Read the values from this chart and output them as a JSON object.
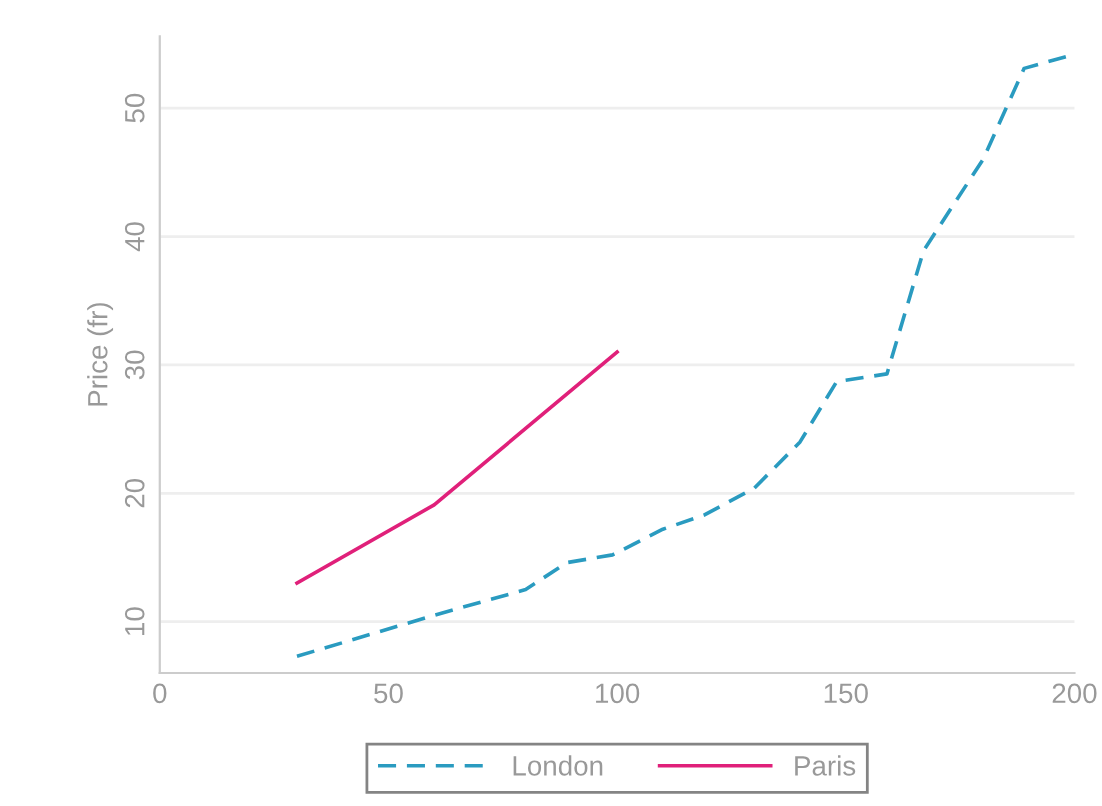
{
  "chart_data": {
    "type": "line",
    "ylabel": "Price (fr)",
    "xlim": [
      0,
      200
    ],
    "xticks": [
      0,
      50,
      100,
      150,
      200
    ],
    "ylim": [
      6,
      55.6
    ],
    "yticks": [
      10,
      20,
      30,
      40,
      50
    ],
    "grid": "y",
    "legend": "bottom",
    "series": [
      {
        "name": "London",
        "color": "#2a9bc0",
        "line_style": "dashed",
        "x": [
          30,
          60,
          80,
          89,
          99,
          110,
          119,
          130,
          140,
          148,
          159,
          167,
          180,
          189,
          199
        ],
        "values": [
          7.3,
          10.5,
          12.5,
          14.6,
          15.2,
          17.2,
          18.3,
          20.4,
          24,
          28.7,
          29.3,
          38.9,
          46,
          53.1,
          54.1
        ]
      },
      {
        "name": "Paris",
        "color": "#e0207a",
        "line_style": "solid",
        "x": [
          30,
          60,
          100
        ],
        "values": [
          13.0,
          19.1,
          31.0
        ]
      }
    ]
  }
}
